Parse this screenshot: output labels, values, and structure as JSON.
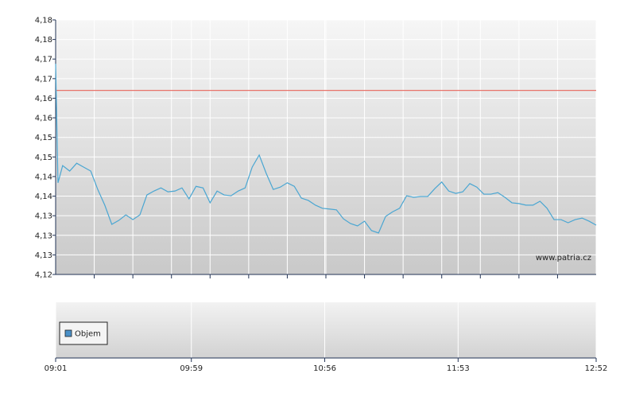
{
  "chart_data": [
    {
      "type": "line",
      "x": [
        "09:01",
        "09:02",
        "09:04",
        "09:07",
        "09:10",
        "09:13",
        "09:16",
        "09:19",
        "09:22",
        "09:25",
        "09:28",
        "09:31",
        "09:34",
        "09:37",
        "09:40",
        "09:43",
        "09:46",
        "09:49",
        "09:52",
        "09:55",
        "09:58",
        "10:01",
        "10:04",
        "10:07",
        "10:10",
        "10:13",
        "10:16",
        "10:19",
        "10:22",
        "10:25",
        "10:28",
        "10:31",
        "10:34",
        "10:37",
        "10:40",
        "10:43",
        "10:46",
        "10:49",
        "10:52",
        "10:55",
        "10:58",
        "11:01",
        "11:04",
        "11:07",
        "11:10",
        "11:13",
        "11:16",
        "11:19",
        "11:22",
        "11:25",
        "11:28",
        "11:31",
        "11:34",
        "11:37",
        "11:40",
        "11:43",
        "11:46",
        "11:49",
        "11:52",
        "11:55",
        "11:58",
        "12:01",
        "12:04",
        "12:07",
        "12:10",
        "12:13",
        "12:16",
        "12:19",
        "12:22",
        "12:25",
        "12:28",
        "12:31",
        "12:34",
        "12:37",
        "12:40",
        "12:43",
        "12:46",
        "12:49",
        "12:52"
      ],
      "series": [
        {
          "color": "#4aa6d2",
          "values": [
            4.1738,
            4.1434,
            4.1478,
            4.1464,
            4.1484,
            4.1474,
            4.1464,
            4.1417,
            4.1377,
            4.1328,
            4.1338,
            4.1352,
            4.134,
            4.1352,
            4.1403,
            4.1413,
            4.1421,
            4.1411,
            4.1413,
            4.1421,
            4.1393,
            4.1425,
            4.1421,
            4.1383,
            4.1413,
            4.1403,
            4.1401,
            4.1413,
            4.1421,
            4.1474,
            4.1505,
            4.1458,
            4.1417,
            4.1423,
            4.1434,
            4.1425,
            4.1395,
            4.1389,
            4.1377,
            4.1369,
            4.1367,
            4.1365,
            4.1342,
            4.133,
            4.1324,
            4.1336,
            4.1312,
            4.1306,
            4.1348,
            4.136,
            4.1369,
            4.1401,
            4.1397,
            4.1399,
            4.1399,
            4.1419,
            4.1436,
            4.1413,
            4.1407,
            4.1411,
            4.1432,
            4.1423,
            4.1405,
            4.1405,
            4.1409,
            4.1397,
            4.1383,
            4.1381,
            4.1377,
            4.1377,
            4.1387,
            4.1369,
            4.134,
            4.134,
            4.1332,
            4.134,
            4.1344,
            4.1336,
            4.1326
          ]
        }
      ],
      "xlim": [
        "09:01",
        "12:52"
      ],
      "xticks": [
        "09:01",
        "09:59",
        "10:56",
        "11:53",
        "12:52"
      ],
      "ylim": [
        4.12,
        4.185
      ],
      "yticks": [
        {
          "value": 4.12,
          "label": "4,12"
        },
        {
          "value": 4.125,
          "label": "4,13"
        },
        {
          "value": 4.13,
          "label": "4,13"
        },
        {
          "value": 4.135,
          "label": "4,13"
        },
        {
          "value": 4.14,
          "label": "4,14"
        },
        {
          "value": 4.145,
          "label": "4,14"
        },
        {
          "value": 4.15,
          "label": "4,15"
        },
        {
          "value": 4.155,
          "label": "4,15"
        },
        {
          "value": 4.16,
          "label": "4,16"
        },
        {
          "value": 4.165,
          "label": "4,16"
        },
        {
          "value": 4.17,
          "label": "4,17"
        },
        {
          "value": 4.175,
          "label": "4,17"
        },
        {
          "value": 4.18,
          "label": "4,18"
        },
        {
          "value": 4.185,
          "label": "4,18"
        }
      ],
      "reference_line": {
        "value": 4.167,
        "color": "#e8736a"
      },
      "watermark": "www.patria.cz",
      "grid": true
    },
    {
      "type": "bar",
      "series": [
        {
          "name": "Objem",
          "color": "#4a90c8",
          "values": []
        }
      ],
      "legend": "bottom-left",
      "grid": true
    }
  ]
}
